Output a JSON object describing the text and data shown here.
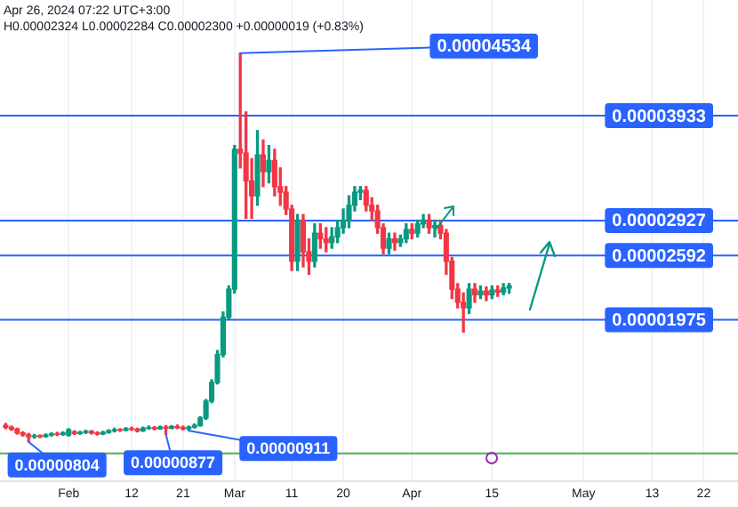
{
  "chart_data": {
    "type": "candlestick",
    "title": "Apr 26, 2024 07:22 UTC+3:00",
    "subtitle": "H0.00002324 L0.00002284 C0.00002300 +0.00000019 (+0.83%)",
    "x": [
      "2024-01-21",
      "2024-01-22",
      "2024-01-23",
      "2024-01-24",
      "2024-01-25",
      "2024-01-26",
      "2024-01-27",
      "2024-01-28",
      "2024-01-29",
      "2024-01-30",
      "2024-01-31",
      "2024-02-01",
      "2024-02-02",
      "2024-02-03",
      "2024-02-04",
      "2024-02-05",
      "2024-02-06",
      "2024-02-07",
      "2024-02-08",
      "2024-02-09",
      "2024-02-10",
      "2024-02-11",
      "2024-02-12",
      "2024-02-13",
      "2024-02-14",
      "2024-02-15",
      "2024-02-16",
      "2024-02-17",
      "2024-02-18",
      "2024-02-19",
      "2024-02-20",
      "2024-02-21",
      "2024-02-22",
      "2024-02-23",
      "2024-02-24",
      "2024-02-25",
      "2024-02-26",
      "2024-02-27",
      "2024-02-28",
      "2024-02-29",
      "2024-03-01",
      "2024-03-02",
      "2024-03-03",
      "2024-03-04",
      "2024-03-05",
      "2024-03-06",
      "2024-03-07",
      "2024-03-08",
      "2024-03-09",
      "2024-03-10",
      "2024-03-11",
      "2024-03-12",
      "2024-03-13",
      "2024-03-14",
      "2024-03-15",
      "2024-03-16",
      "2024-03-17",
      "2024-03-18",
      "2024-03-19",
      "2024-03-20",
      "2024-03-21",
      "2024-03-22",
      "2024-03-23",
      "2024-03-24",
      "2024-03-25",
      "2024-03-26",
      "2024-03-27",
      "2024-03-28",
      "2024-03-29",
      "2024-03-30",
      "2024-03-31",
      "2024-04-01",
      "2024-04-02",
      "2024-04-03",
      "2024-04-04",
      "2024-04-05",
      "2024-04-06",
      "2024-04-07",
      "2024-04-08",
      "2024-04-09",
      "2024-04-10",
      "2024-04-11",
      "2024-04-12",
      "2024-04-13",
      "2024-04-14",
      "2024-04-15",
      "2024-04-16",
      "2024-04-17",
      "2024-04-18"
    ],
    "ohlc": [
      [
        9.62e-06,
        9.8e-06,
        9.3e-06,
        9.44e-06
      ],
      [
        9.44e-06,
        9.55e-06,
        9.15e-06,
        9.26e-06
      ],
      [
        9.26e-06,
        9.35e-06,
        8.8e-06,
        8.9e-06
      ],
      [
        8.9e-06,
        9e-06,
        8.6e-06,
        8.72e-06
      ],
      [
        8.72e-06,
        8.85e-06,
        8.04e-06,
        8.54e-06
      ],
      [
        8.54e-06,
        8.75e-06,
        8.4e-06,
        8.62e-06
      ],
      [
        8.62e-06,
        8.7e-06,
        8.45e-06,
        8.55e-06
      ],
      [
        8.55e-06,
        8.8e-06,
        8.5e-06,
        8.7e-06
      ],
      [
        8.7e-06,
        8.9e-06,
        8.6e-06,
        8.8e-06
      ],
      [
        8.8e-06,
        8.95e-06,
        8.65e-06,
        8.75e-06
      ],
      [
        8.75e-06,
        9e-06,
        8.68e-06,
        8.9e-06
      ],
      [
        8.7e-06,
        9.3e-06,
        8.6e-06,
        9.2e-06
      ],
      [
        9e-06,
        9.1e-06,
        8.75e-06,
        8.85e-06
      ],
      [
        8.85e-06,
        9.05e-06,
        8.78e-06,
        8.95e-06
      ],
      [
        8.95e-06,
        9.15e-06,
        8.85e-06,
        9.05e-06
      ],
      [
        9.05e-06,
        9.12e-06,
        8.8e-06,
        8.9e-06
      ],
      [
        8.9e-06,
        9e-06,
        8.7e-06,
        8.8e-06
      ],
      [
        8.8e-06,
        9.05e-06,
        8.75e-06,
        8.95e-06
      ],
      [
        8.95e-06,
        9.2e-06,
        8.88e-06,
        9.1e-06
      ],
      [
        9.1e-06,
        9.35e-06,
        9e-06,
        9.2e-06
      ],
      [
        9.2e-06,
        9.3e-06,
        9.05e-06,
        9.15e-06
      ],
      [
        9.15e-06,
        9.4e-06,
        9.1e-06,
        9.3e-06
      ],
      [
        9.3e-06,
        9.45e-06,
        9.15e-06,
        9.25e-06
      ],
      [
        9.25e-06,
        9.35e-06,
        9e-06,
        9.1e-06
      ],
      [
        9.1e-06,
        9.45e-06,
        9.05e-06,
        9.35e-06
      ],
      [
        9.35e-06,
        9.55e-06,
        9.25e-06,
        9.4e-06
      ],
      [
        9.4e-06,
        9.5e-06,
        9.2e-06,
        9.3e-06
      ],
      [
        9.3e-06,
        9.55e-06,
        9.25e-06,
        9.45e-06
      ],
      [
        9.45e-06,
        9.6e-06,
        8.77e-06,
        9.35e-06
      ],
      [
        9.35e-06,
        9.6e-06,
        9.3e-06,
        9.5e-06
      ],
      [
        9.5e-06,
        9.65e-06,
        9.32e-06,
        9.4e-06
      ],
      [
        9.4e-06,
        9.55e-06,
        9.2e-06,
        9.3e-06
      ],
      [
        9.3e-06,
        9.55e-06,
        9.11e-06,
        9.45e-06
      ],
      [
        9.45e-06,
        9.75e-06,
        9.38e-06,
        9.62e-06
      ],
      [
        9.62e-06,
        1.045e-05,
        9.55e-06,
        1.033e-05
      ],
      [
        1.033e-05,
        1.21e-05,
        1.02e-05,
        1.195e-05
      ],
      [
        1.195e-05,
        1.4e-05,
        1.18e-05,
        1.374e-05
      ],
      [
        1.374e-05,
        1.68e-05,
        1.36e-05,
        1.642e-05
      ],
      [
        1.642e-05,
        2.05e-05,
        1.62e-05,
        2e-05
      ],
      [
        2e-05,
        2.3e-05,
        1.98e-05,
        2.269e-05
      ],
      [
        2.269e-05,
        3.647e-05,
        2.233e-05,
        3.611e-05
      ],
      [
        3.611e-05,
        4.534e-05,
        3.432e-05,
        3.575e-05
      ],
      [
        3.575e-05,
        3.969e-05,
        2.949e-05,
        3.307e-05
      ],
      [
        3.307e-05,
        3.521e-05,
        2.949e-05,
        3.164e-05
      ],
      [
        3.164e-05,
        3.79e-05,
        3.074e-05,
        3.557e-05
      ],
      [
        3.557e-05,
        3.7e-05,
        3.253e-05,
        3.396e-05
      ],
      [
        3.396e-05,
        3.647e-05,
        3.289e-05,
        3.504e-05
      ],
      [
        3.504e-05,
        3.611e-05,
        3.164e-05,
        3.253e-05
      ],
      [
        3.253e-05,
        3.432e-05,
        3.074e-05,
        3.199e-05
      ],
      [
        3.199e-05,
        3.253e-05,
        2.985e-05,
        3.038e-05
      ],
      [
        3.038e-05,
        3.074e-05,
        2.448e-05,
        2.537e-05
      ],
      [
        2.537e-05,
        2.985e-05,
        2.448e-05,
        2.931e-05
      ],
      [
        2.931e-05,
        2.985e-05,
        2.483e-05,
        2.627e-05
      ],
      [
        2.627e-05,
        2.752e-05,
        2.412e-05,
        2.537e-05
      ],
      [
        2.537e-05,
        2.895e-05,
        2.483e-05,
        2.806e-05
      ],
      [
        2.806e-05,
        2.895e-05,
        2.662e-05,
        2.752e-05
      ],
      [
        2.752e-05,
        2.859e-05,
        2.627e-05,
        2.716e-05
      ],
      [
        2.716e-05,
        2.859e-05,
        2.662e-05,
        2.77e-05
      ],
      [
        2.77e-05,
        2.931e-05,
        2.716e-05,
        2.859e-05
      ],
      [
        2.859e-05,
        3.038e-05,
        2.806e-05,
        2.931e-05
      ],
      [
        2.931e-05,
        3.164e-05,
        2.859e-05,
        3.074e-05
      ],
      [
        3.074e-05,
        3.253e-05,
        3.02e-05,
        3.199e-05
      ],
      [
        3.199e-05,
        3.253e-05,
        3.128e-05,
        3.217e-05
      ],
      [
        3.217e-05,
        3.253e-05,
        3.02e-05,
        3.074e-05
      ],
      [
        3.074e-05,
        3.146e-05,
        2.931e-05,
        3.02e-05
      ],
      [
        3.02e-05,
        3.074e-05,
        2.806e-05,
        2.859e-05
      ],
      [
        2.859e-05,
        2.895e-05,
        2.609e-05,
        2.662e-05
      ],
      [
        2.662e-05,
        2.806e-05,
        2.609e-05,
        2.752e-05
      ],
      [
        2.752e-05,
        2.806e-05,
        2.644e-05,
        2.716e-05
      ],
      [
        2.716e-05,
        2.788e-05,
        2.68e-05,
        2.752e-05
      ],
      [
        2.752e-05,
        2.895e-05,
        2.716e-05,
        2.841e-05
      ],
      [
        2.841e-05,
        2.895e-05,
        2.752e-05,
        2.806e-05
      ],
      [
        2.806e-05,
        2.931e-05,
        2.77e-05,
        2.895e-05
      ],
      [
        2.895e-05,
        2.985e-05,
        2.859e-05,
        2.931e-05
      ],
      [
        2.931e-05,
        2.985e-05,
        2.806e-05,
        2.859e-05
      ],
      [
        2.859e-05,
        2.931e-05,
        2.77e-05,
        2.88e-05
      ],
      [
        2.88e-05,
        2.931e-05,
        2.752e-05,
        2.806e-05
      ],
      [
        2.806e-05,
        2.841e-05,
        2.412e-05,
        2.537e-05
      ],
      [
        2.537e-05,
        2.573e-05,
        2.179e-05,
        2.269e-05
      ],
      [
        2.269e-05,
        2.322e-05,
        2.09e-05,
        2.143e-05
      ],
      [
        2.143e-05,
        2.233e-05,
        1.857e-05,
        2.09e-05
      ],
      [
        2.09e-05,
        2.322e-05,
        2.036e-05,
        2.269e-05
      ],
      [
        2.269e-05,
        2.322e-05,
        2.143e-05,
        2.215e-05
      ],
      [
        2.215e-05,
        2.3e-05,
        2.179e-05,
        2.25e-05
      ],
      [
        2.25e-05,
        2.29e-05,
        2.16e-05,
        2.215e-05
      ],
      [
        2.215e-05,
        2.3e-05,
        2.179e-05,
        2.26e-05
      ],
      [
        2.26e-05,
        2.3e-05,
        2.2e-05,
        2.24e-05
      ],
      [
        2.24e-05,
        2.322e-05,
        2.215e-05,
        2.28e-05
      ],
      [
        2.28e-05,
        2.324e-05,
        2.23e-05,
        2.3e-05
      ]
    ],
    "colors": [
      "#f23645",
      "#f23645",
      "#f23645",
      "#f23645",
      "#f23645",
      "#089981",
      "#f23645",
      "#089981",
      "#089981",
      "#f23645",
      "#089981",
      "#089981",
      "#f23645",
      "#089981",
      "#089981",
      "#f23645",
      "#f23645",
      "#089981",
      "#089981",
      "#089981",
      "#f23645",
      "#089981",
      "#f23645",
      "#f23645",
      "#089981",
      "#089981",
      "#f23645",
      "#089981",
      "#f23645",
      "#089981",
      "#f23645",
      "#f23645",
      "#089981",
      "#089981",
      "#089981",
      "#089981",
      "#089981",
      "#089981",
      "#089981",
      "#089981",
      "#089981",
      "#f23645",
      "#f23645",
      "#f23645",
      "#089981",
      "#f23645",
      "#089981",
      "#f23645",
      "#f23645",
      "#f23645",
      "#f23645",
      "#089981",
      "#f23645",
      "#f23645",
      "#089981",
      "#f23645",
      "#f23645",
      "#089981",
      "#089981",
      "#089981",
      "#089981",
      "#089981",
      "#089981",
      "#f23645",
      "#f23645",
      "#f23645",
      "#f23645",
      "#089981",
      "#f23645",
      "#089981",
      "#089981",
      "#f23645",
      "#089981",
      "#089981",
      "#f23645",
      "#089981",
      "#f23645",
      "#f23645",
      "#f23645",
      "#f23645",
      "#f23645",
      "#089981",
      "#f23645",
      "#089981",
      "#f23645",
      "#089981",
      "#f23645",
      "#089981",
      "#089981"
    ],
    "xlim": [
      "2024-01-20",
      "2024-05-28"
    ],
    "xticks": [
      {
        "value": "2024-02-01",
        "label": "Feb"
      },
      {
        "value": "2024-02-12",
        "label": "12"
      },
      {
        "value": "2024-02-21",
        "label": "21"
      },
      {
        "value": "2024-03-01",
        "label": "Mar"
      },
      {
        "value": "2024-03-11",
        "label": "11"
      },
      {
        "value": "2024-03-20",
        "label": "20"
      },
      {
        "value": "2024-04-01",
        "label": "Apr"
      },
      {
        "value": "2024-04-15",
        "label": "15"
      },
      {
        "value": "2024-05-01",
        "label": "May"
      },
      {
        "value": "2024-05-13",
        "label": "13"
      },
      {
        "value": "2024-05-22",
        "label": "22"
      }
    ],
    "ylim": [
      4.25e-06,
      5.043e-05
    ],
    "tick_labels": "x",
    "grid": "x",
    "legend": false,
    "ref_lines": [
      {
        "axis": "y",
        "value": 3.933e-05,
        "label": "0.00003933",
        "color": "#2962ff"
      },
      {
        "axis": "y",
        "value": 2.927e-05,
        "label": "0.00002927",
        "color": "#2962ff"
      },
      {
        "axis": "y",
        "value": 2.592e-05,
        "label": "0.00002592",
        "color": "#2962ff"
      },
      {
        "axis": "y",
        "value": 1.975e-05,
        "label": "0.00001975",
        "color": "#2962ff"
      },
      {
        "axis": "y",
        "value": 6.93e-06,
        "color": "#4caf50"
      }
    ],
    "annotations": [
      {
        "text": "0.00004534",
        "x": "2024-03-02",
        "y": 4.534e-05
      },
      {
        "text": "0.00000804",
        "x": "2024-01-25",
        "y": 8.04e-06
      },
      {
        "text": "0.00000877",
        "x": "2024-02-18",
        "y": 8.77e-06
      },
      {
        "text": "0.00000911",
        "x": "2024-02-22",
        "y": 9.11e-06
      }
    ]
  }
}
